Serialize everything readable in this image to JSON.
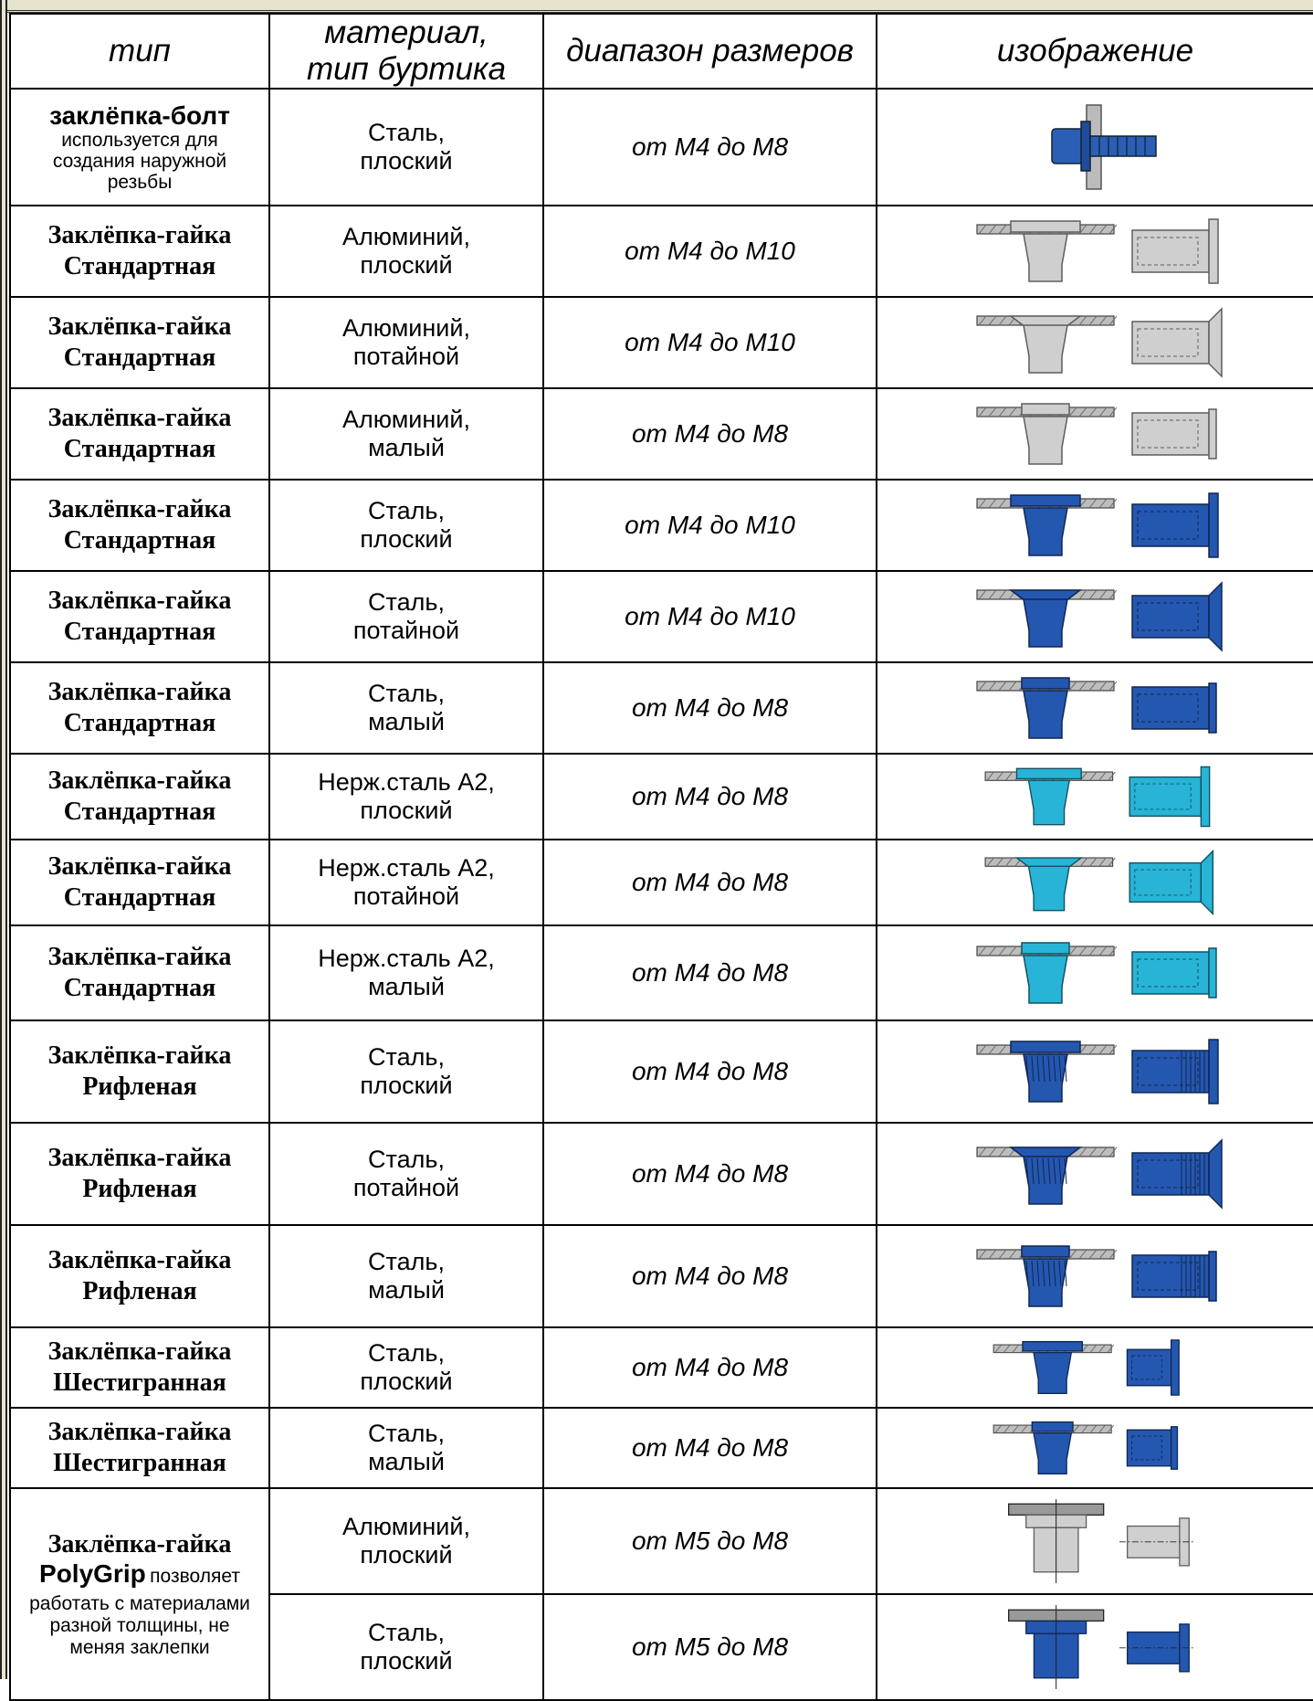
{
  "headers": {
    "type": "тип",
    "material_l1": "материал,",
    "material_l2": "тип буртика",
    "range": "диапазон размеров",
    "image": "изображение"
  },
  "rows": [
    {
      "title": "заклёпка-болт",
      "desc": "используется для создания наружной резьбы",
      "mat1": "Сталь,",
      "mat2": "плоский",
      "range": "от М4 до М8",
      "color": "#2b5fb5"
    },
    {
      "title1": "Заклёпка-гайка",
      "title2": "Стандартная",
      "mat1": "Алюминий,",
      "mat2": "плоский",
      "range": "от М4 до М10",
      "color": "#cfcfcf"
    },
    {
      "title1": "Заклёпка-гайка",
      "title2": "Стандартная",
      "mat1": "Алюминий,",
      "mat2": "потайной",
      "range": "от М4 до М10",
      "color": "#cfcfcf"
    },
    {
      "title1": "Заклёпка-гайка",
      "title2": "Стандартная",
      "mat1": "Алюминий,",
      "mat2": "малый",
      "range": "от М4 до М8",
      "color": "#cfcfcf"
    },
    {
      "title1": "Заклёпка-гайка",
      "title2": "Стандартная",
      "mat1": "Сталь,",
      "mat2": "плоский",
      "range": "от М4 до М10",
      "color": "#2457b0"
    },
    {
      "title1": "Заклёпка-гайка",
      "title2": "Стандартная",
      "mat1": "Сталь,",
      "mat2": "потайной",
      "range": "от М4 до М10",
      "color": "#2457b0"
    },
    {
      "title1": "Заклёпка-гайка",
      "title2": "Стандартная",
      "mat1": "Сталь,",
      "mat2": "малый",
      "range": "от М4 до М8",
      "color": "#2457b0"
    },
    {
      "title1": "Заклёпка-гайка",
      "title2": "Стандартная",
      "mat1": "Нерж.сталь А2,",
      "mat2": "плоский",
      "range": "от М4 до М8",
      "color": "#28b4d6"
    },
    {
      "title1": "Заклёпка-гайка",
      "title2": "Стандартная",
      "mat1": "Нерж.сталь А2,",
      "mat2": "потайной",
      "range": "от М4 до М8",
      "color": "#28b4d6"
    },
    {
      "title1": "Заклёпка-гайка",
      "title2": "Стандартная",
      "mat1": "Нерж.сталь А2,",
      "mat2": "малый",
      "range": "от М4 до М8",
      "color": "#28b4d6"
    },
    {
      "title1": "Заклёпка-гайка",
      "title2": "Рифленая",
      "mat1": "Сталь,",
      "mat2": "плоский",
      "range": "от М4 до М8",
      "color": "#2457b0"
    },
    {
      "title1": "Заклёпка-гайка",
      "title2": "Рифленая",
      "mat1": "Сталь,",
      "mat2": "потайной",
      "range": "от М4 до М8",
      "color": "#2457b0"
    },
    {
      "title1": "Заклёпка-гайка",
      "title2": "Рифленая",
      "mat1": "Сталь,",
      "mat2": "малый",
      "range": "от М4 до М8",
      "color": "#2457b0"
    },
    {
      "title1": "Заклёпка-гайка",
      "title2": "Шестигранная",
      "mat1": "Сталь,",
      "mat2": "плоский",
      "range": "от М4 до М8",
      "color": "#2457b0"
    },
    {
      "title1": "Заклёпка-гайка",
      "title2": "Шестигранная",
      "mat1": "Сталь,",
      "mat2": "малый",
      "range": "от М4 до М8",
      "color": "#2457b0"
    },
    {
      "title1": "Заклёпка-гайка",
      "title2": "PolyGrip",
      "desc_inline": "позволяет",
      "desc": "работать с материалами разной толщины, не меняя заклепки",
      "mat1": "Алюминий,",
      "mat2": "плоский",
      "range": "от М5 до М8",
      "color": "#cfcfcf"
    },
    {
      "mat1": "Сталь,",
      "mat2": "плоский",
      "range": "от М5 до М8",
      "color": "#2457b0"
    }
  ]
}
